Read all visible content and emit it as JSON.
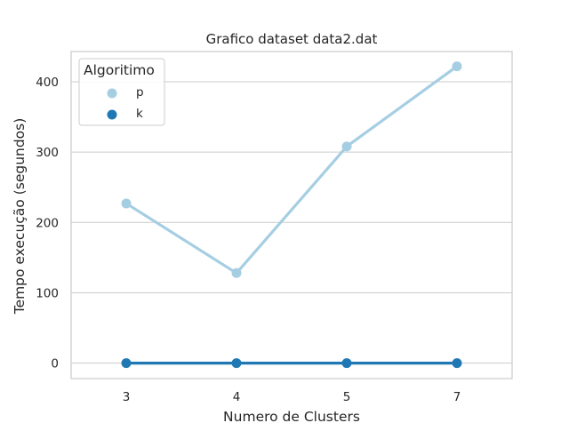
{
  "chart_data": {
    "type": "line",
    "title": "Grafico dataset data2.dat",
    "xlabel": "Numero de Clusters",
    "ylabel": "Tempo execução (segundos)",
    "categories": [
      "3",
      "4",
      "5",
      "7"
    ],
    "ylim": [
      -22,
      443
    ],
    "yticks": [
      0,
      100,
      200,
      300,
      400
    ],
    "grid": true,
    "legend": {
      "title": "Algoritimo",
      "placement": "top-left"
    },
    "series": [
      {
        "name": "p",
        "color": "#a6cee3",
        "values": [
          227,
          128,
          308,
          422
        ]
      },
      {
        "name": "k",
        "color": "#1f78b4",
        "values": [
          0,
          0,
          0,
          0
        ]
      }
    ]
  }
}
